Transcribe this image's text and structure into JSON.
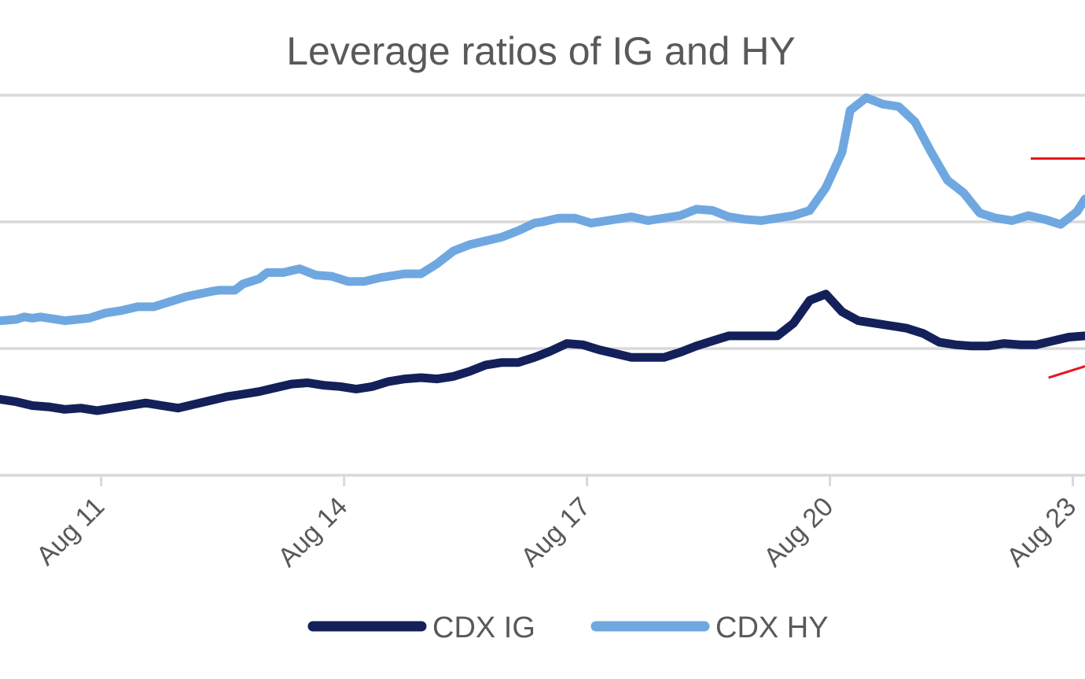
{
  "chart_data": {
    "type": "line",
    "title": "Leverage ratios of IG and HY",
    "xlabel": "",
    "ylabel": "",
    "x_unit": "day of August (day 0 = left edge of plot)",
    "x_range": [
      0,
      13.4
    ],
    "ylim": [
      0,
      3
    ],
    "gridlines": [
      0,
      1,
      2,
      3
    ],
    "grid": true,
    "x_ticks": [
      {
        "x": 1.25,
        "label": "Aug 11"
      },
      {
        "x": 4.25,
        "label": "Aug 14"
      },
      {
        "x": 7.25,
        "label": "Aug 17"
      },
      {
        "x": 10.25,
        "label": "Aug 20"
      },
      {
        "x": 13.25,
        "label": "Aug 23"
      }
    ],
    "annotations": [
      {
        "kind": "red-line",
        "x1": 12.73,
        "y1": 2.5,
        "x2": 13.4,
        "y2": 2.5
      },
      {
        "kind": "red-line",
        "x1": 12.95,
        "y1": 0.77,
        "x2": 13.4,
        "y2": 0.86
      }
    ],
    "series": [
      {
        "name": "CDX HY",
        "color": "#6fa8e0",
        "points": [
          [
            0,
            1.22
          ],
          [
            0.2,
            1.23
          ],
          [
            0.3,
            1.25
          ],
          [
            0.4,
            1.24
          ],
          [
            0.5,
            1.25
          ],
          [
            0.8,
            1.22
          ],
          [
            1.1,
            1.24
          ],
          [
            1.3,
            1.28
          ],
          [
            1.5,
            1.3
          ],
          [
            1.7,
            1.33
          ],
          [
            1.9,
            1.33
          ],
          [
            2.1,
            1.37
          ],
          [
            2.3,
            1.41
          ],
          [
            2.6,
            1.45
          ],
          [
            2.7,
            1.46
          ],
          [
            2.9,
            1.46
          ],
          [
            3.0,
            1.51
          ],
          [
            3.2,
            1.55
          ],
          [
            3.3,
            1.6
          ],
          [
            3.5,
            1.6
          ],
          [
            3.7,
            1.63
          ],
          [
            3.9,
            1.58
          ],
          [
            4.1,
            1.57
          ],
          [
            4.3,
            1.53
          ],
          [
            4.5,
            1.53
          ],
          [
            4.7,
            1.56
          ],
          [
            5.0,
            1.59
          ],
          [
            5.2,
            1.59
          ],
          [
            5.4,
            1.67
          ],
          [
            5.6,
            1.77
          ],
          [
            5.8,
            1.82
          ],
          [
            6.0,
            1.85
          ],
          [
            6.2,
            1.88
          ],
          [
            6.4,
            1.93
          ],
          [
            6.6,
            1.99
          ],
          [
            6.7,
            2.0
          ],
          [
            6.9,
            2.03
          ],
          [
            7.1,
            2.03
          ],
          [
            7.3,
            1.99
          ],
          [
            7.6,
            2.02
          ],
          [
            7.8,
            2.04
          ],
          [
            8.0,
            2.01
          ],
          [
            8.2,
            2.03
          ],
          [
            8.4,
            2.05
          ],
          [
            8.6,
            2.1
          ],
          [
            8.8,
            2.09
          ],
          [
            9.0,
            2.04
          ],
          [
            9.2,
            2.02
          ],
          [
            9.4,
            2.01
          ],
          [
            9.6,
            2.03
          ],
          [
            9.8,
            2.05
          ],
          [
            10.0,
            2.09
          ],
          [
            10.2,
            2.27
          ],
          [
            10.4,
            2.55
          ],
          [
            10.5,
            2.88
          ],
          [
            10.7,
            2.98
          ],
          [
            10.9,
            2.93
          ],
          [
            11.1,
            2.91
          ],
          [
            11.3,
            2.79
          ],
          [
            11.5,
            2.55
          ],
          [
            11.7,
            2.33
          ],
          [
            11.9,
            2.23
          ],
          [
            12.1,
            2.07
          ],
          [
            12.3,
            2.03
          ],
          [
            12.5,
            2.01
          ],
          [
            12.7,
            2.05
          ],
          [
            12.9,
            2.02
          ],
          [
            13.1,
            1.98
          ],
          [
            13.3,
            2.08
          ],
          [
            13.4,
            2.18
          ]
        ]
      },
      {
        "name": "CDX IG",
        "color": "#13205a",
        "points": [
          [
            0,
            0.6
          ],
          [
            0.2,
            0.58
          ],
          [
            0.4,
            0.55
          ],
          [
            0.6,
            0.54
          ],
          [
            0.8,
            0.52
          ],
          [
            1.0,
            0.53
          ],
          [
            1.2,
            0.51
          ],
          [
            1.4,
            0.53
          ],
          [
            1.6,
            0.55
          ],
          [
            1.8,
            0.57
          ],
          [
            2.0,
            0.55
          ],
          [
            2.2,
            0.53
          ],
          [
            2.4,
            0.56
          ],
          [
            2.6,
            0.59
          ],
          [
            2.8,
            0.62
          ],
          [
            3.0,
            0.64
          ],
          [
            3.2,
            0.66
          ],
          [
            3.4,
            0.69
          ],
          [
            3.6,
            0.72
          ],
          [
            3.8,
            0.73
          ],
          [
            4.0,
            0.71
          ],
          [
            4.2,
            0.7
          ],
          [
            4.4,
            0.68
          ],
          [
            4.6,
            0.7
          ],
          [
            4.8,
            0.74
          ],
          [
            5.0,
            0.76
          ],
          [
            5.2,
            0.77
          ],
          [
            5.4,
            0.76
          ],
          [
            5.6,
            0.78
          ],
          [
            5.8,
            0.82
          ],
          [
            6.0,
            0.87
          ],
          [
            6.2,
            0.89
          ],
          [
            6.4,
            0.89
          ],
          [
            6.6,
            0.93
          ],
          [
            6.8,
            0.98
          ],
          [
            7.0,
            1.04
          ],
          [
            7.2,
            1.03
          ],
          [
            7.4,
            0.99
          ],
          [
            7.6,
            0.96
          ],
          [
            7.8,
            0.93
          ],
          [
            8.0,
            0.93
          ],
          [
            8.2,
            0.93
          ],
          [
            8.4,
            0.97
          ],
          [
            8.6,
            1.02
          ],
          [
            8.8,
            1.06
          ],
          [
            9.0,
            1.1
          ],
          [
            9.2,
            1.1
          ],
          [
            9.4,
            1.1
          ],
          [
            9.6,
            1.1
          ],
          [
            9.8,
            1.2
          ],
          [
            10.0,
            1.38
          ],
          [
            10.2,
            1.43
          ],
          [
            10.4,
            1.29
          ],
          [
            10.6,
            1.22
          ],
          [
            10.8,
            1.2
          ],
          [
            11.0,
            1.18
          ],
          [
            11.2,
            1.16
          ],
          [
            11.4,
            1.12
          ],
          [
            11.6,
            1.05
          ],
          [
            11.8,
            1.03
          ],
          [
            12.0,
            1.02
          ],
          [
            12.2,
            1.02
          ],
          [
            12.4,
            1.04
          ],
          [
            12.6,
            1.03
          ],
          [
            12.8,
            1.03
          ],
          [
            13.0,
            1.06
          ],
          [
            13.2,
            1.09
          ],
          [
            13.4,
            1.1
          ]
        ]
      }
    ],
    "legend": {
      "placement": "bottom-center",
      "entries": [
        {
          "label": "CDX IG",
          "color": "#13205a"
        },
        {
          "label": "CDX HY",
          "color": "#6fa8e0"
        }
      ]
    }
  }
}
